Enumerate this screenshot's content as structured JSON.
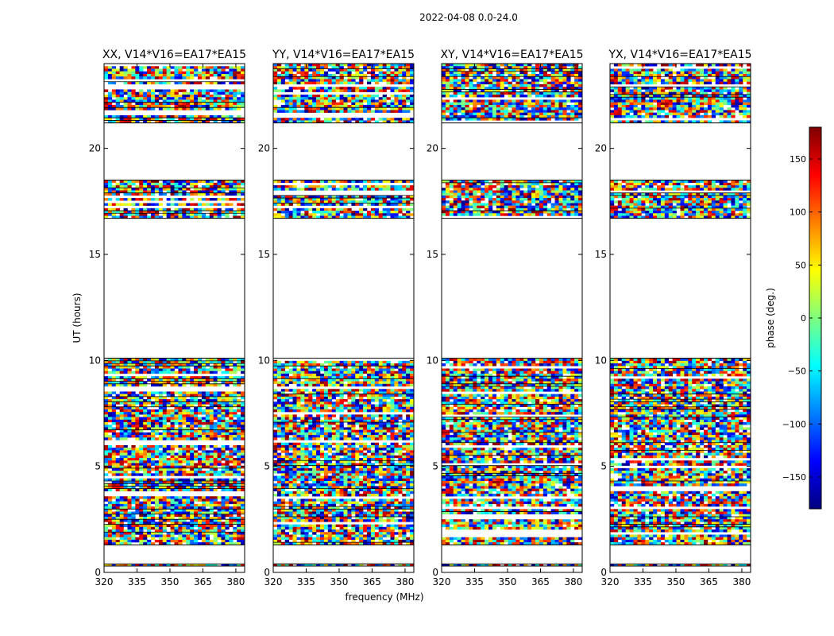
{
  "figure_title": "2022-04-08 0.0-24.0",
  "shared_xlabel": "frequency (MHz)",
  "shared_ylabel": "UT (hours)",
  "colorbar": {
    "label": "phase (deg.)",
    "min": -180,
    "max": 180,
    "ticks": [
      -150,
      -100,
      -50,
      0,
      50,
      100,
      150
    ],
    "tick_labels": [
      "−150",
      "−100",
      "−50",
      "0",
      "50",
      "100",
      "150"
    ],
    "colormap": "jet",
    "colors": [
      "#00007f",
      "#0000ff",
      "#007fff",
      "#00ffff",
      "#7fff7f",
      "#ffff00",
      "#ff7f00",
      "#ff0000",
      "#7f0000"
    ]
  },
  "chart_data": [
    {
      "type": "heatmap",
      "title": "XX, V14*V16=EA17*EA15",
      "xlabel": "",
      "ylabel": "UT (hours)",
      "xlim": [
        320,
        384
      ],
      "ylim": [
        0,
        24
      ],
      "xticks": [
        320,
        335,
        350,
        365,
        380
      ],
      "yticks": [
        0,
        5,
        10,
        15,
        20
      ],
      "data_blocks_ut": [
        [
          0.3,
          0.4
        ],
        [
          1.3,
          10.1
        ],
        [
          16.7,
          18.5
        ],
        [
          21.2,
          24.0
        ]
      ],
      "value": "phase (deg.), mostly noise-like across -180 to 180"
    },
    {
      "type": "heatmap",
      "title": "YY, V14*V16=EA17*EA15",
      "xlabel": "frequency (MHz)",
      "ylabel": "",
      "xlim": [
        320,
        384
      ],
      "ylim": [
        0,
        24
      ],
      "xticks": [
        320,
        335,
        350,
        365,
        380
      ],
      "yticks": [
        0,
        5,
        10,
        15,
        20
      ],
      "data_blocks_ut": [
        [
          0.3,
          0.4
        ],
        [
          1.3,
          10.1
        ],
        [
          16.7,
          18.5
        ],
        [
          21.2,
          24.0
        ]
      ],
      "value": "phase (deg.), mostly noise-like across -180 to 180"
    },
    {
      "type": "heatmap",
      "title": "XY, V14*V16=EA17*EA15",
      "xlabel": "",
      "ylabel": "",
      "xlim": [
        320,
        384
      ],
      "ylim": [
        0,
        24
      ],
      "xticks": [
        320,
        335,
        350,
        365,
        380
      ],
      "yticks": [
        0,
        5,
        10,
        15,
        20
      ],
      "data_blocks_ut": [
        [
          0.3,
          0.4
        ],
        [
          1.3,
          10.1
        ],
        [
          16.7,
          18.5
        ],
        [
          21.2,
          24.0
        ]
      ],
      "value": "phase (deg.), noise-like across -180 to 180"
    },
    {
      "type": "heatmap",
      "title": "YX, V14*V16=EA17*EA15",
      "xlabel": "",
      "ylabel": "",
      "xlim": [
        320,
        384
      ],
      "ylim": [
        0,
        24
      ],
      "xticks": [
        320,
        335,
        350,
        365,
        380
      ],
      "yticks": [
        0,
        5,
        10,
        15,
        20
      ],
      "data_blocks_ut": [
        [
          0.3,
          0.4
        ],
        [
          1.3,
          10.1
        ],
        [
          16.7,
          18.5
        ],
        [
          21.2,
          24.0
        ]
      ],
      "value": "phase (deg.), noise-like across -180 to 180"
    }
  ]
}
